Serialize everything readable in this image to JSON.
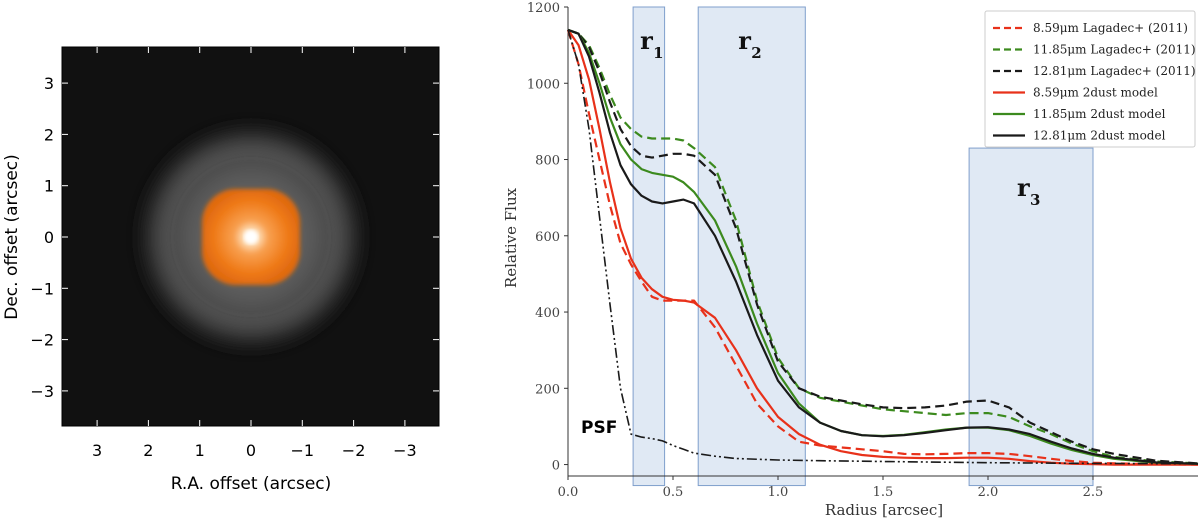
{
  "left_panel": {
    "type": "image",
    "xlabel": "R.A. offset (arcsec)",
    "ylabel": "Dec. offset (arcsec)",
    "xticks": [
      "3",
      "2",
      "1",
      "0",
      "−1",
      "−2",
      "−3"
    ],
    "yticks": [
      "3",
      "2",
      "1",
      "0",
      "−1",
      "−2",
      "−3"
    ],
    "colors": {
      "background": "#111111",
      "core": "#f07a1a",
      "halo": "#8a8a8a"
    }
  },
  "chart_data": {
    "type": "line",
    "xlabel": "Radius [arcsec]",
    "ylabel": "Relative Flux",
    "xlim": [
      0,
      3.0
    ],
    "ylim": [
      -30,
      1200
    ],
    "xticks": [
      "0.0",
      "0.5",
      "1.0",
      "1.5",
      "2.0",
      "2.5"
    ],
    "yticks": [
      "0",
      "200",
      "400",
      "600",
      "800",
      "1000",
      "1200"
    ],
    "regions": [
      {
        "label": "r",
        "sub": "1",
        "x0": 0.31,
        "x1": 0.46,
        "ytop": 1200
      },
      {
        "label": "r",
        "sub": "2",
        "x0": 0.62,
        "x1": 1.13,
        "ytop": 1200
      },
      {
        "label": "r",
        "sub": "3",
        "x0": 1.91,
        "x1": 2.5,
        "ytop": 830
      }
    ],
    "annotation": "PSF",
    "series": [
      {
        "name": "8.59μm Lagadec+ (2011)",
        "color": "#e8311a",
        "dash": "dashed",
        "x": [
          0,
          0.05,
          0.1,
          0.15,
          0.2,
          0.25,
          0.3,
          0.35,
          0.4,
          0.45,
          0.5,
          0.55,
          0.6,
          0.7,
          0.8,
          0.9,
          1.0,
          1.1,
          1.2,
          1.3,
          1.4,
          1.5,
          1.6,
          1.7,
          1.8,
          1.9,
          2.0,
          2.1,
          2.2,
          2.3,
          2.4,
          2.5,
          2.6,
          2.8,
          3.0
        ],
        "y": [
          1140,
          1050,
          920,
          800,
          680,
          580,
          525,
          480,
          440,
          430,
          430,
          430,
          430,
          360,
          260,
          160,
          100,
          60,
          50,
          45,
          40,
          35,
          28,
          27,
          28,
          30,
          30,
          28,
          22,
          15,
          9,
          5,
          3,
          1,
          0
        ]
      },
      {
        "name": "11.85μm Lagadec+ (2011)",
        "color": "#3c8a1e",
        "dash": "dashed",
        "x": [
          0,
          0.05,
          0.1,
          0.15,
          0.2,
          0.25,
          0.3,
          0.35,
          0.4,
          0.45,
          0.5,
          0.55,
          0.6,
          0.7,
          0.8,
          0.9,
          1.0,
          1.1,
          1.2,
          1.3,
          1.4,
          1.5,
          1.6,
          1.7,
          1.8,
          1.9,
          2.0,
          2.1,
          2.2,
          2.3,
          2.4,
          2.5,
          2.6,
          2.8,
          3.0
        ],
        "y": [
          1140,
          1130,
          1100,
          1040,
          970,
          910,
          880,
          860,
          855,
          855,
          855,
          850,
          830,
          780,
          640,
          430,
          280,
          200,
          175,
          165,
          155,
          145,
          140,
          135,
          130,
          135,
          135,
          125,
          100,
          80,
          55,
          35,
          20,
          8,
          3
        ]
      },
      {
        "name": "12.81μm Lagadec+ (2011)",
        "color": "#1a1a1a",
        "dash": "dashed",
        "x": [
          0,
          0.05,
          0.1,
          0.15,
          0.2,
          0.25,
          0.3,
          0.35,
          0.4,
          0.45,
          0.5,
          0.55,
          0.6,
          0.7,
          0.8,
          0.9,
          1.0,
          1.1,
          1.2,
          1.3,
          1.4,
          1.5,
          1.6,
          1.7,
          1.8,
          1.9,
          2.0,
          2.1,
          2.2,
          2.3,
          2.4,
          2.5,
          2.6,
          2.8,
          3.0
        ],
        "y": [
          1140,
          1130,
          1095,
          1030,
          950,
          880,
          835,
          810,
          805,
          810,
          815,
          815,
          810,
          760,
          620,
          420,
          270,
          200,
          178,
          168,
          158,
          150,
          148,
          150,
          155,
          165,
          168,
          150,
          110,
          85,
          60,
          40,
          28,
          10,
          3
        ]
      },
      {
        "name": "8.59μm 2dust model",
        "color": "#e8311a",
        "dash": "solid",
        "x": [
          0,
          0.05,
          0.1,
          0.15,
          0.2,
          0.25,
          0.3,
          0.35,
          0.4,
          0.45,
          0.5,
          0.55,
          0.6,
          0.7,
          0.8,
          0.9,
          1.0,
          1.1,
          1.2,
          1.3,
          1.4,
          1.5,
          1.6,
          1.7,
          1.8,
          1.9,
          2.0,
          2.1,
          2.2,
          2.3,
          2.4,
          2.5,
          2.6,
          2.8,
          3.0
        ],
        "y": [
          1140,
          1100,
          1010,
          880,
          740,
          620,
          540,
          490,
          460,
          440,
          432,
          430,
          425,
          385,
          300,
          200,
          125,
          80,
          52,
          35,
          25,
          20,
          18,
          17,
          17,
          18,
          18,
          15,
          9,
          5,
          2,
          1,
          0,
          0,
          0
        ]
      },
      {
        "name": "11.85μm 2dust model",
        "color": "#3c8a1e",
        "dash": "solid",
        "x": [
          0,
          0.05,
          0.1,
          0.15,
          0.2,
          0.25,
          0.3,
          0.35,
          0.4,
          0.45,
          0.5,
          0.55,
          0.6,
          0.7,
          0.8,
          0.9,
          1.0,
          1.1,
          1.2,
          1.3,
          1.4,
          1.5,
          1.6,
          1.7,
          1.8,
          1.9,
          2.0,
          2.1,
          2.2,
          2.3,
          2.4,
          2.5,
          2.6,
          2.8,
          3.0
        ],
        "y": [
          1140,
          1130,
          1080,
          1000,
          910,
          840,
          800,
          775,
          765,
          760,
          755,
          740,
          715,
          640,
          520,
          370,
          240,
          160,
          110,
          88,
          77,
          75,
          78,
          85,
          92,
          97,
          97,
          90,
          75,
          55,
          38,
          25,
          15,
          5,
          2
        ]
      },
      {
        "name": "12.81μm 2dust model",
        "color": "#1a1a1a",
        "dash": "solid",
        "x": [
          0,
          0.05,
          0.1,
          0.15,
          0.2,
          0.25,
          0.3,
          0.35,
          0.4,
          0.45,
          0.5,
          0.55,
          0.6,
          0.7,
          0.8,
          0.9,
          1.0,
          1.1,
          1.2,
          1.3,
          1.4,
          1.5,
          1.6,
          1.7,
          1.8,
          1.9,
          2.0,
          2.1,
          2.2,
          2.3,
          2.4,
          2.5,
          2.6,
          2.8,
          3.0
        ],
        "y": [
          1140,
          1130,
          1070,
          975,
          870,
          785,
          735,
          705,
          690,
          685,
          690,
          695,
          685,
          600,
          480,
          340,
          220,
          150,
          110,
          88,
          77,
          74,
          77,
          83,
          90,
          97,
          98,
          92,
          80,
          60,
          42,
          28,
          18,
          6,
          2
        ]
      },
      {
        "name": "PSF",
        "color": "#1a1a1a",
        "dash": "dashdotdot",
        "x": [
          0,
          0.05,
          0.1,
          0.15,
          0.2,
          0.25,
          0.3,
          0.35,
          0.4,
          0.45,
          0.5,
          0.55,
          0.6,
          0.7,
          0.8,
          1.0,
          1.2,
          1.5,
          2.0,
          2.5,
          3.0
        ],
        "y": [
          1140,
          1050,
          880,
          650,
          420,
          200,
          80,
          72,
          68,
          62,
          50,
          40,
          30,
          22,
          16,
          12,
          10,
          8,
          5,
          3,
          2
        ]
      }
    ]
  }
}
